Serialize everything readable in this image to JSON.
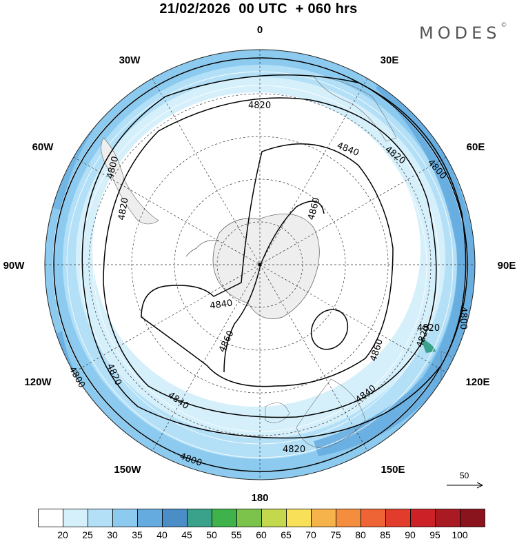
{
  "title": "21/02/2026  00 UTC  + 060 hrs",
  "logo": {
    "text": "MODES",
    "mark": "©"
  },
  "longitude_labels": [
    {
      "id": "lon-0",
      "text": "0"
    },
    {
      "id": "lon-30e",
      "text": "30E"
    },
    {
      "id": "lon-60e",
      "text": "60E"
    },
    {
      "id": "lon-90e",
      "text": "90E"
    },
    {
      "id": "lon-120e",
      "text": "120E"
    },
    {
      "id": "lon-150e",
      "text": "150E"
    },
    {
      "id": "lon-180",
      "text": "180"
    },
    {
      "id": "lon-150w",
      "text": "150W"
    },
    {
      "id": "lon-120w",
      "text": "120W"
    },
    {
      "id": "lon-90w",
      "text": "90W"
    },
    {
      "id": "lon-60w",
      "text": "60W"
    },
    {
      "id": "lon-30w",
      "text": "30W"
    }
  ],
  "contour_labels": [
    "4820",
    "4840",
    "4800",
    "4820",
    "4800",
    "4820",
    "4860",
    "4840",
    "4860",
    "4860",
    "4820",
    "4800",
    "4820",
    "4840",
    "4820",
    "4800",
    "4800",
    "4820",
    "4840"
  ],
  "reference_vector": {
    "label": "50"
  },
  "colorbar": {
    "colors": [
      "#ffffff",
      "#d6f0fb",
      "#b3e0f7",
      "#8ccbef",
      "#65abdf",
      "#4b8dc7",
      "#3aa18a",
      "#40b24b",
      "#7cc34b",
      "#c4d84e",
      "#f8e058",
      "#f7b34b",
      "#f48e3e",
      "#ee6434",
      "#e23d2c",
      "#cc2126",
      "#aa1a22",
      "#8a141d"
    ],
    "labels": [
      "20",
      "25",
      "30",
      "35",
      "40",
      "45",
      "50",
      "55",
      "60",
      "65",
      "70",
      "75",
      "80",
      "85",
      "90",
      "95",
      "100"
    ]
  }
}
